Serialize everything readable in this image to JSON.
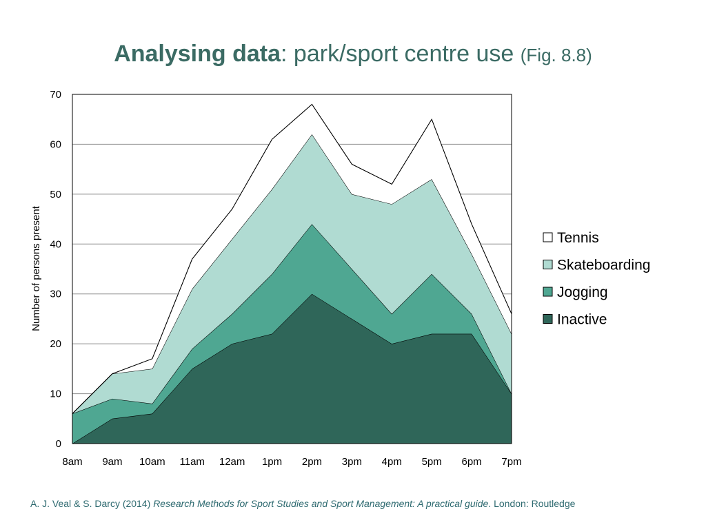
{
  "title": {
    "bold": "Analysing data",
    "rest": ": park/sport centre use ",
    "fig": "(Fig. 8.8)"
  },
  "citation": {
    "authors": "A. J. Veal & S. Darcy (2014) ",
    "title": "Research Methods for Sport Studies and Sport Management: A practical guide",
    "publisher": ". London: Routledge"
  },
  "chart_data": {
    "type": "area",
    "stacked": true,
    "title": "",
    "xlabel": "",
    "ylabel": "Number of persons present",
    "categories": [
      "8am",
      "9am",
      "10am",
      "11am",
      "12am",
      "1pm",
      "2pm",
      "3pm",
      "4pm",
      "5pm",
      "6pm",
      "7pm"
    ],
    "ylim": [
      0,
      70
    ],
    "yticks": [
      0,
      10,
      20,
      30,
      40,
      50,
      60,
      70
    ],
    "grid": true,
    "legend_position": "right",
    "series": [
      {
        "name": "Inactive",
        "color": "#2f6659",
        "values": [
          0,
          5,
          6,
          15,
          20,
          22,
          30,
          25,
          20,
          22,
          22,
          10
        ]
      },
      {
        "name": "Jogging",
        "color": "#4fa792",
        "values": [
          6,
          4,
          2,
          4,
          6,
          12,
          14,
          10,
          6,
          12,
          4,
          0
        ]
      },
      {
        "name": "Skateboarding",
        "color": "#b0dbd2",
        "values": [
          0,
          5,
          7,
          12,
          15,
          17,
          18,
          15,
          22,
          19,
          12,
          12
        ]
      },
      {
        "name": "Tennis",
        "color": "#ffffff",
        "values": [
          0,
          0,
          2,
          6,
          6,
          10,
          6,
          6,
          4,
          12,
          6,
          4
        ]
      }
    ]
  }
}
